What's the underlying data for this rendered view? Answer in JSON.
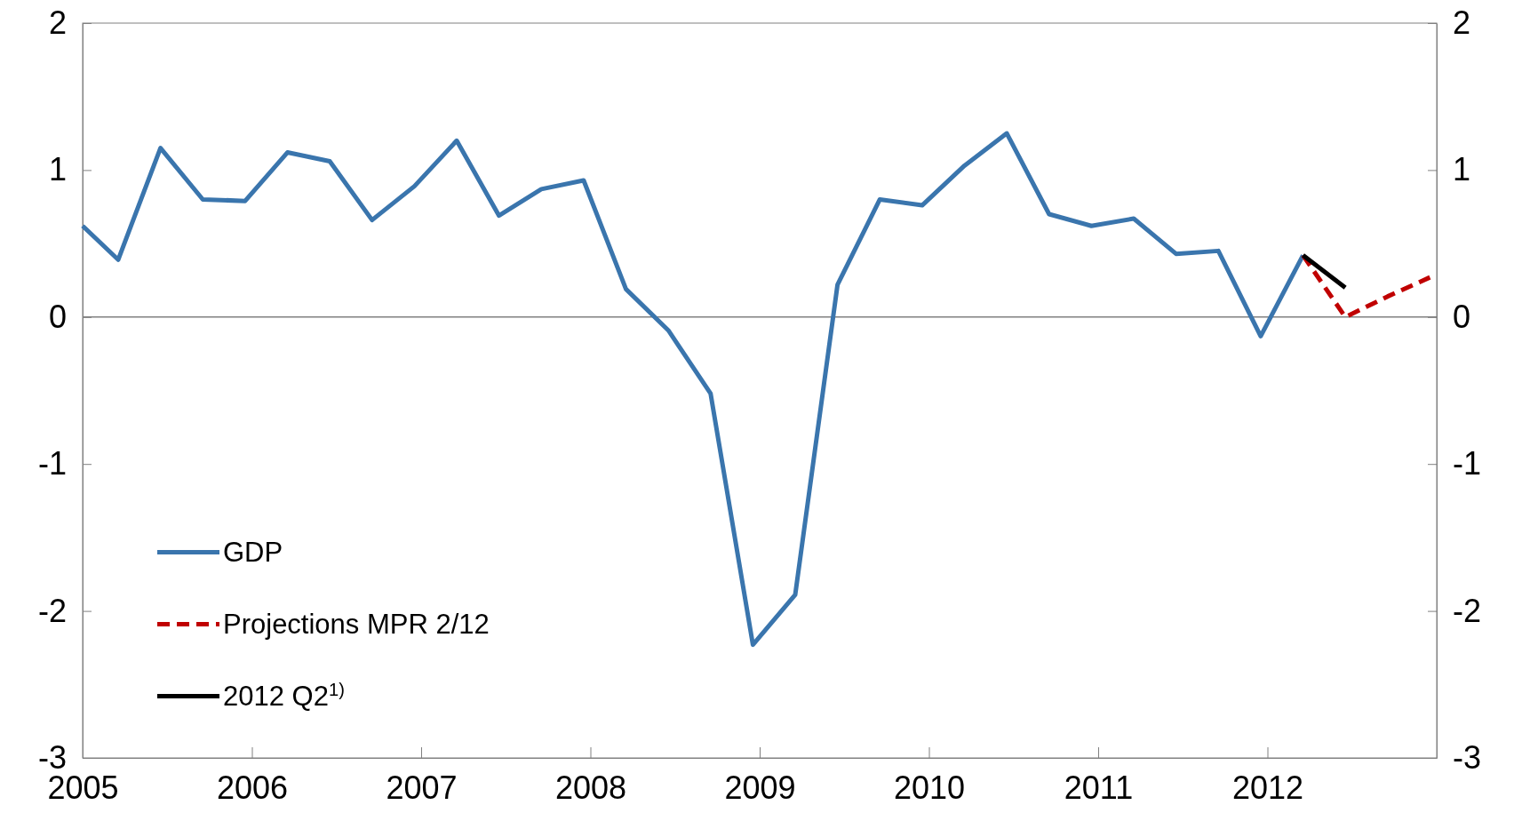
{
  "chart_data": {
    "type": "line",
    "xlim": [
      2005,
      2013
    ],
    "xticks": [
      2005,
      2006,
      2007,
      2008,
      2009,
      2010,
      2011,
      2012
    ],
    "ylim": [
      -3,
      2
    ],
    "yticks": [
      -3,
      -2,
      -1,
      0,
      1,
      2
    ],
    "y2lim": [
      -3,
      2
    ],
    "y2ticks": [
      -3,
      -2,
      -1,
      0,
      1,
      2
    ],
    "legend": "bottom left",
    "grid": false,
    "ref_lines": [
      {
        "axis": "y",
        "value": 0,
        "color": "#808080"
      }
    ],
    "series": [
      {
        "name": "GDP",
        "color": "#3a75ad",
        "line_style": "solid",
        "x": [
          2005,
          2005.21,
          2005.46,
          2005.71,
          2005.96,
          2006.21,
          2006.46,
          2006.71,
          2006.96,
          2007.21,
          2007.46,
          2007.71,
          2007.96,
          2008.21,
          2008.46,
          2008.71,
          2008.96,
          2009.21,
          2009.46,
          2009.71,
          2009.96,
          2010.21,
          2010.46,
          2010.71,
          2010.96,
          2011.21,
          2011.46,
          2011.71,
          2011.96,
          2012.21
        ],
        "values": [
          0.62,
          0.39,
          1.15,
          0.8,
          0.79,
          1.12,
          1.06,
          0.66,
          0.89,
          1.2,
          0.69,
          0.87,
          0.93,
          0.19,
          -0.09,
          -0.52,
          -2.23,
          -1.89,
          0.22,
          0.8,
          0.76,
          1.03,
          1.25,
          0.7,
          0.62,
          0.67,
          0.43,
          0.45,
          -0.13,
          0.42
        ]
      },
      {
        "name": "Projections MPR 2/12",
        "color": "#c00000",
        "line_style": "dashed",
        "x": [
          2012.21,
          2012.46,
          2012.71,
          2012.96
        ],
        "values": [
          0.42,
          0,
          0.14,
          0.27
        ]
      },
      {
        "name": "2012 Q2$^{1)}$",
        "color": "#000000",
        "line_style": "solid",
        "x": [
          2012.21,
          2012.46
        ],
        "values": [
          0.42,
          0.2
        ]
      }
    ]
  }
}
